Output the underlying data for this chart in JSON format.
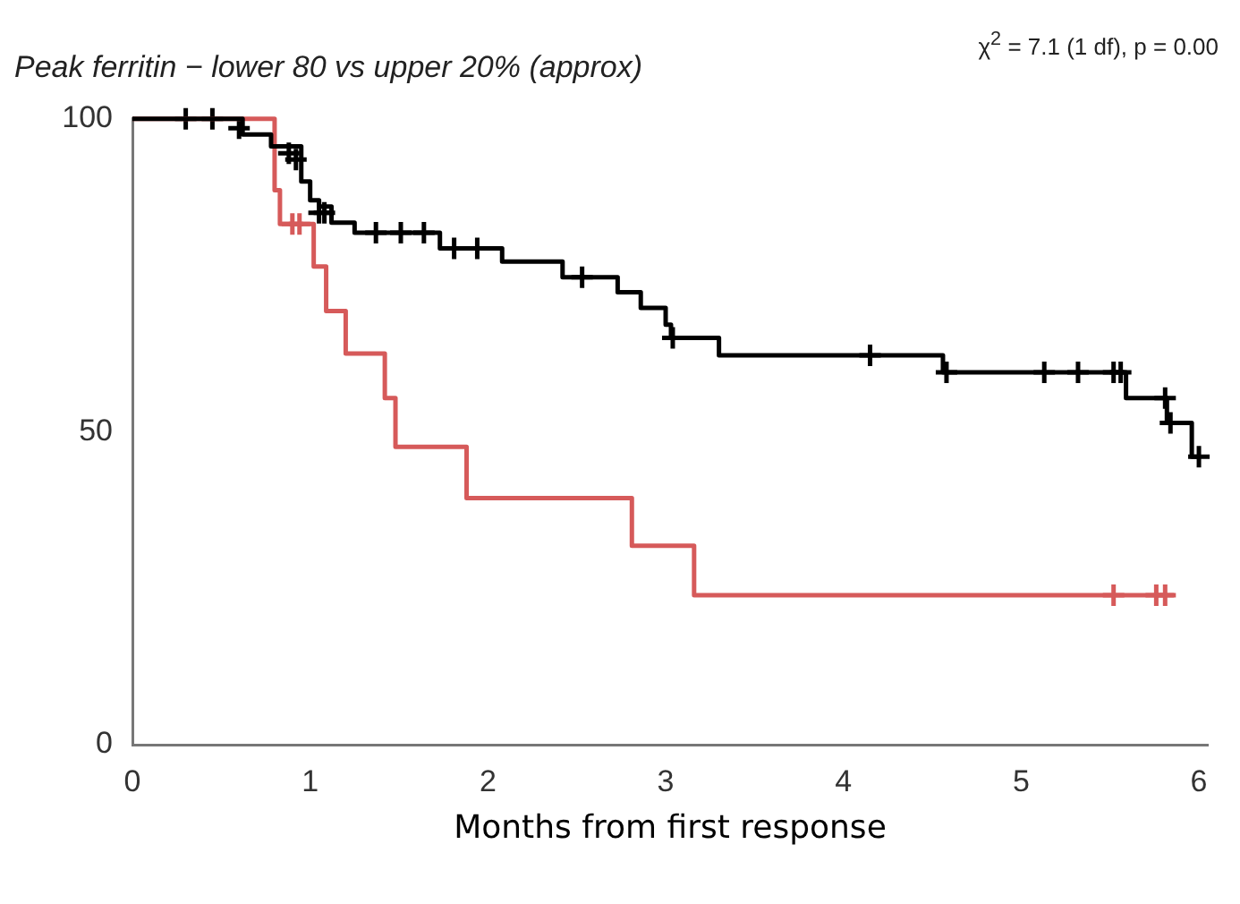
{
  "chart_data": {
    "type": "step",
    "title": "Peak ferritin − lower 80 vs upper 20% (approx)",
    "xlabel": "Months from first response",
    "annotations": [
      "χ$^{2}$ = 7.1 (1 df), p = 0.00"
    ],
    "xlim": [
      0,
      6.05
    ],
    "xticks": [
      0,
      1,
      2,
      3,
      4,
      5,
      6
    ],
    "ylim": [
      0,
      100
    ],
    "yticks": [
      0,
      50,
      100
    ],
    "grid": false,
    "legend": false,
    "marker": "none",
    "line_style": "solid",
    "series": [
      {
        "color": "#000000",
        "x": [
          0,
          0.62,
          0.78,
          0.95,
          1.0,
          1.05,
          1.12,
          1.25,
          1.73,
          2.08,
          2.42,
          2.73,
          2.86,
          3.0,
          3.03,
          3.3,
          4.56,
          5.59,
          5.82,
          5.96,
          6.0
        ],
        "values": [
          100,
          97.5,
          95.6,
          90,
          87,
          86,
          83.4,
          81.8,
          79.3,
          77.2,
          74.7,
          72.3,
          69.8,
          67.1,
          65,
          62.2,
          59.5,
          55.4,
          51.4,
          46,
          46
        ]
      },
      {
        "color": "#d65a5a",
        "x": [
          0,
          0.8,
          0.83,
          1.02,
          1.09,
          1.2,
          1.42,
          1.48,
          1.88,
          2.81,
          3.16,
          5.86
        ],
        "values": [
          100,
          88.6,
          83.2,
          76.4,
          69.3,
          62.5,
          55.4,
          47.6,
          39.4,
          31.8,
          23.9,
          23.9
        ]
      },
      {
        "type": "scatter",
        "marker": "cross",
        "color": "#000000",
        "x": [
          0.3,
          0.45,
          0.6,
          0.88,
          0.92,
          1.05,
          1.08,
          1.37,
          1.51,
          1.64,
          1.81,
          1.94,
          2.53,
          3.04,
          4.15,
          4.58,
          5.13,
          5.32,
          5.52,
          5.56,
          5.81,
          5.84,
          6.0
        ],
        "values": [
          100,
          100,
          98.5,
          94.5,
          93.5,
          85,
          85,
          81.8,
          81.8,
          81.8,
          79.3,
          79.3,
          74.7,
          65,
          62.2,
          59.5,
          59.5,
          59.5,
          59.5,
          59.5,
          55.4,
          51.4,
          46
        ]
      },
      {
        "type": "scatter",
        "marker": "cross",
        "color": "#d65a5a",
        "x": [
          0.9,
          0.94,
          5.52,
          5.76,
          5.81
        ],
        "values": [
          83.2,
          83.2,
          23.9,
          23.9,
          23.9
        ]
      }
    ]
  }
}
